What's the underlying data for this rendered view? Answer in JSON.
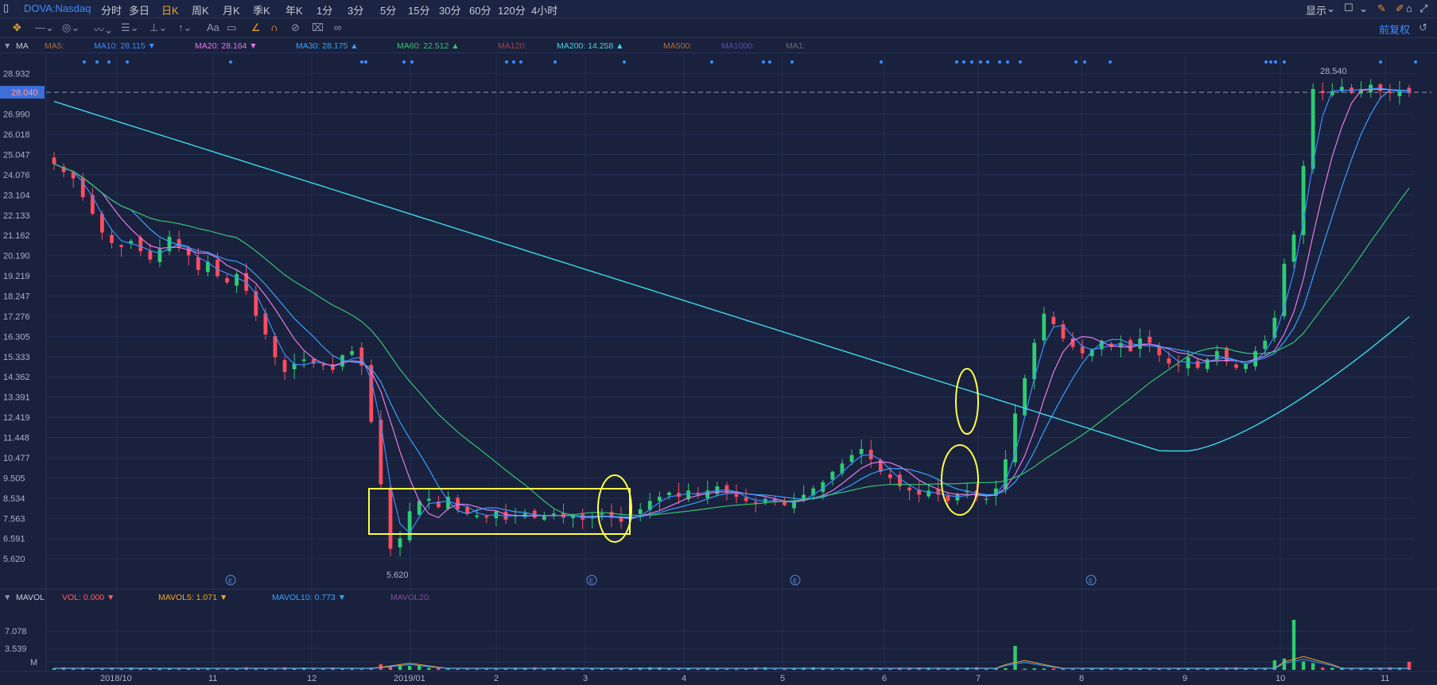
{
  "header": {
    "symbol": "DOVA:Nasdaq",
    "periods": [
      "分时",
      "多日",
      "日K",
      "周K",
      "月K",
      "季K",
      "年K",
      "1分",
      "3分",
      "5分",
      "15分",
      "30分",
      "60分",
      "120分",
      "4小时"
    ],
    "active_period": "日K",
    "display_label": "显示"
  },
  "toolbar": {
    "right_label": "前复权"
  },
  "ma_legend": {
    "label": "MA",
    "items": [
      {
        "name": "MA5:",
        "value": "",
        "color": "#e8913c",
        "arrow": ""
      },
      {
        "name": "MA10:",
        "value": "28.115",
        "color": "#3d8bfd",
        "arrow": "▼"
      },
      {
        "name": "MA20:",
        "value": "28.164",
        "color": "#e77ae6",
        "arrow": "▼"
      },
      {
        "name": "MA30:",
        "value": "28.175",
        "color": "#3aa0ff",
        "arrow": "▲"
      },
      {
        "name": "MA60:",
        "value": "22.512",
        "color": "#38c172",
        "arrow": "▲"
      },
      {
        "name": "MA120:",
        "value": "",
        "color": "#d9534f",
        "arrow": ""
      },
      {
        "name": "MA200:",
        "value": "14.258",
        "color": "#3dd8e6",
        "arrow": "▲"
      },
      {
        "name": "MA500:",
        "value": "",
        "color": "#e8913c",
        "arrow": ""
      },
      {
        "name": "MA1000:",
        "value": "",
        "color": "#7b5cd6",
        "arrow": ""
      },
      {
        "name": "MA1:",
        "value": "",
        "color": "#888888",
        "arrow": ""
      }
    ]
  },
  "vol_legend": {
    "label": "MAVOL",
    "items": [
      {
        "name": "VOL:",
        "value": "0.000",
        "color": "#ff5f5f",
        "arrow": "▼"
      },
      {
        "name": "MAVOL5:",
        "value": "1.071",
        "color": "#f5a623",
        "arrow": "▼"
      },
      {
        "name": "MAVOL10:",
        "value": "0.773",
        "color": "#3aa0ff",
        "arrow": "▼"
      },
      {
        "name": "MAVOL20:",
        "value": "",
        "color": "#b05cc8",
        "arrow": ""
      }
    ]
  },
  "colors": {
    "up": "#2ecc71",
    "down": "#ff4d5e",
    "ma10": "#3d8bfd",
    "ma20": "#e77ae6",
    "ma30": "#3aa0ff",
    "ma60": "#38c172",
    "ma200": "#3dd8e6",
    "highlight": "#ffff44"
  },
  "chart_data": {
    "type": "candlestick",
    "y_ticks": [
      "28.932",
      "26.990",
      "26.018",
      "25.047",
      "24.076",
      "23.104",
      "22.133",
      "21.162",
      "20.190",
      "19.219",
      "18.247",
      "17.276",
      "16.305",
      "15.333",
      "14.362",
      "13.391",
      "12.419",
      "11.448",
      "10.477",
      "9.505",
      "8.534",
      "7.563",
      "6.591",
      "5.620"
    ],
    "current_price": "28.040",
    "ylim": [
      4.9,
      29.8
    ],
    "x_ticks": [
      "2018/10",
      "11",
      "12",
      "2019/01",
      "2",
      "3",
      "4",
      "5",
      "6",
      "7",
      "8",
      "9",
      "10",
      "11"
    ],
    "annotations": {
      "high": "28.540",
      "low": "5.620"
    },
    "price_path": [
      24.6,
      24.2,
      23.9,
      23.0,
      22.2,
      21.3,
      20.8,
      20.6,
      20.9,
      20.4,
      20.0,
      20.5,
      21.1,
      20.6,
      20.2,
      19.5,
      19.9,
      19.2,
      18.9,
      19.3,
      18.5,
      17.3,
      16.4,
      15.3,
      14.6,
      15.0,
      15.2,
      15.0,
      14.9,
      14.7,
      15.4,
      15.6,
      14.9,
      12.2,
      9.2,
      6.1,
      6.6,
      7.9,
      8.4,
      8.5,
      8.1,
      8.6,
      8.0,
      7.8,
      7.7,
      7.6,
      7.9,
      7.5,
      7.7,
      7.8,
      7.6,
      7.7,
      7.8,
      7.6,
      7.7,
      7.5,
      7.6,
      7.8,
      7.6,
      7.4,
      7.6,
      8.0,
      8.4,
      8.6,
      8.8,
      8.6,
      8.9,
      8.7,
      8.9,
      9.1,
      8.8,
      8.6,
      8.4,
      8.3,
      8.5,
      8.4,
      8.2,
      8.4,
      8.7,
      9.0,
      9.3,
      9.8,
      10.2,
      10.6,
      10.9,
      10.4,
      9.8,
      9.5,
      9.1,
      8.9,
      8.7,
      8.9,
      8.7,
      8.4,
      8.7,
      8.9,
      8.6,
      8.5,
      9.0,
      10.4,
      12.6,
      14.3,
      16.0,
      17.4,
      16.9,
      16.2,
      15.8,
      15.5,
      15.7,
      16.1,
      15.8,
      16.0,
      15.6,
      16.2,
      16.0,
      15.4,
      15.0,
      14.9,
      15.3,
      14.8,
      15.2,
      15.6,
      15.1,
      14.8,
      15.0,
      15.6,
      16.1,
      17.2,
      19.8,
      21.2,
      24.5,
      28.2,
      28.0,
      28.1,
      28.3,
      28.0,
      28.2,
      28.4,
      28.1,
      28.0,
      28.1,
      28.0
    ],
    "volume_yticks": [
      "7.078",
      "3.539",
      "M"
    ],
    "volume_spikes": [
      {
        "index": 100,
        "value": 3.6
      },
      {
        "index": 129,
        "value": 7.5
      },
      {
        "index": 128,
        "value": 1.7
      }
    ]
  }
}
